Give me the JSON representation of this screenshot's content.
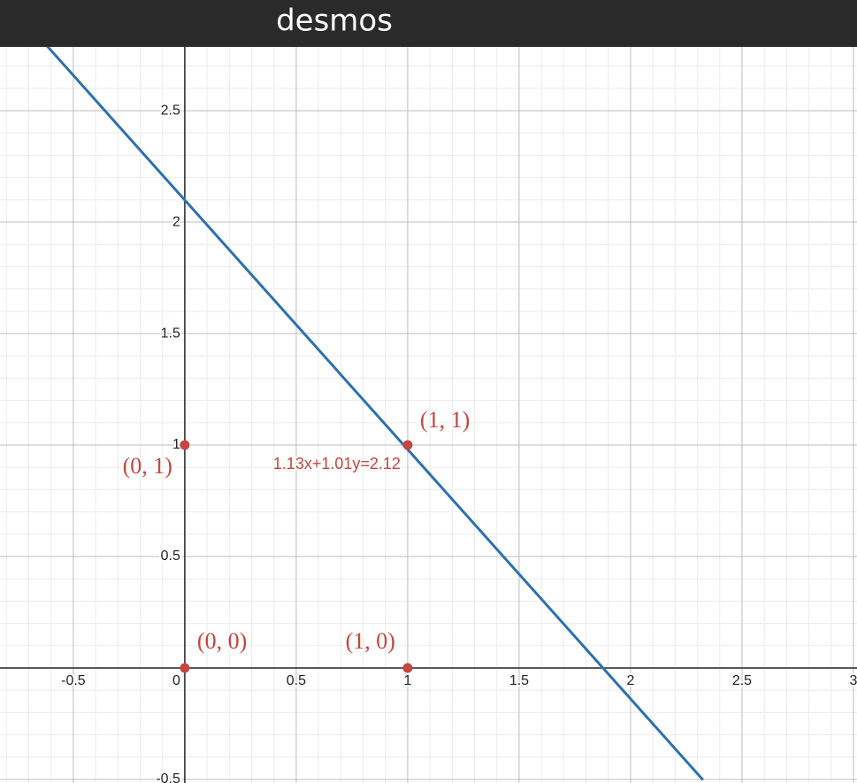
{
  "header": {
    "title": "desmos"
  },
  "chart_data": {
    "type": "line",
    "xlim": [
      -0.829,
      3.016
    ],
    "ylim": [
      -0.516,
      2.786
    ],
    "xticks": [
      -0.5,
      0,
      0.5,
      1,
      1.5,
      2,
      2.5,
      3
    ],
    "yticks": [
      -0.5,
      0.5,
      1,
      1.5,
      2,
      2.5
    ],
    "grid": true,
    "minor_grid_step": 0.1,
    "line": {
      "label": "1.13x+1.01y=2.12",
      "color": "#2d70b3",
      "x": [
        -0.623,
        2.325
      ],
      "y": [
        2.796,
        -0.502
      ]
    },
    "points": {
      "color": "#c74440",
      "x": [
        0,
        1,
        0,
        1
      ],
      "y": [
        0,
        0,
        1,
        1
      ],
      "labels": [
        "(0, 0)",
        "(1, 0)",
        "(0, 1)",
        "(1, 1)"
      ]
    }
  }
}
